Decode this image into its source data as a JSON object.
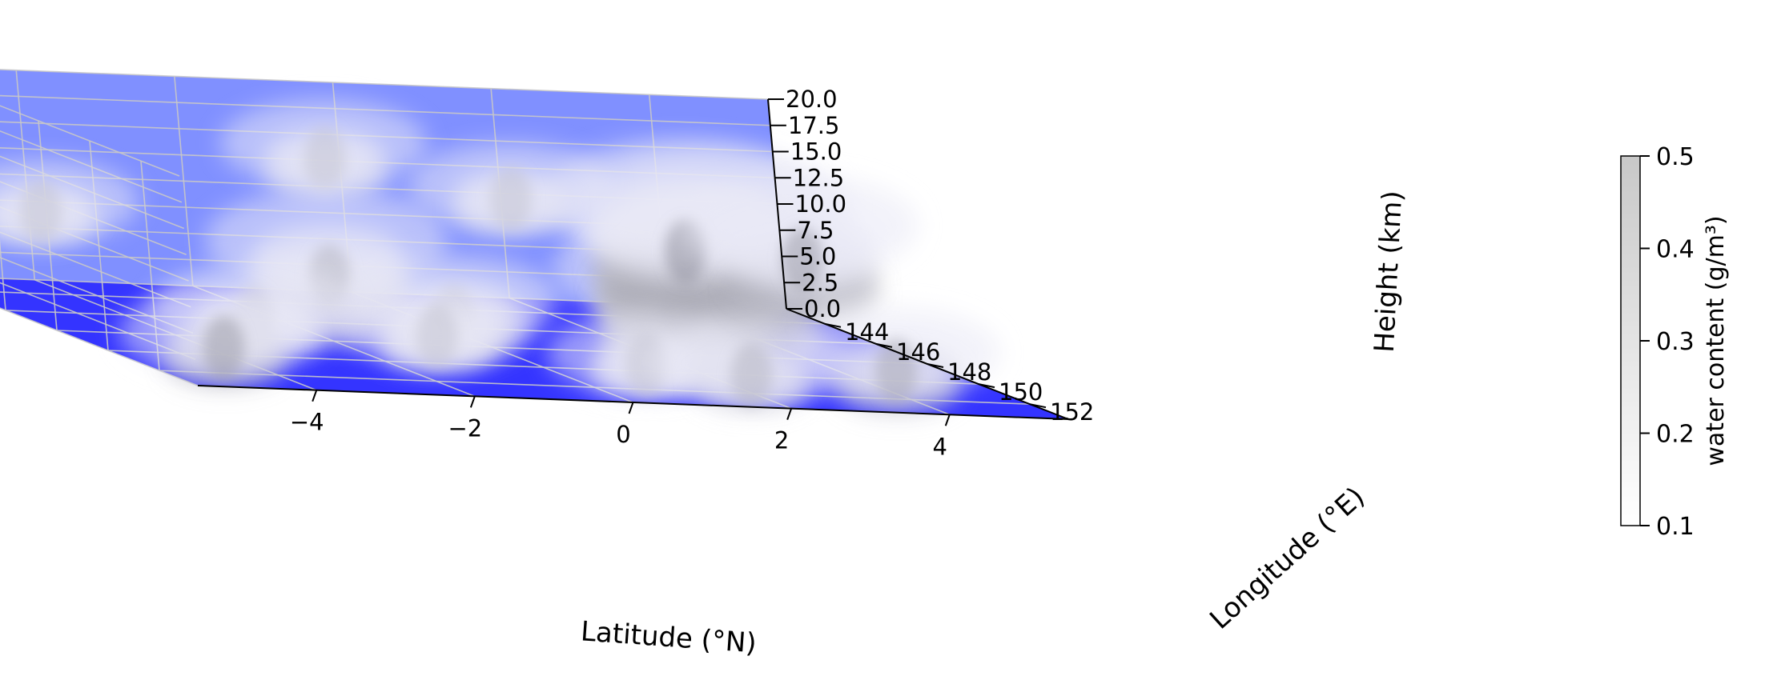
{
  "chart_data": {
    "type": "scatter3d",
    "title": "",
    "xlabel": "Latitude ($^\\circ$N)",
    "ylabel": "Longitude ($^\\circ$E)",
    "zlabel": "Height (km)",
    "xlabel_text": "Latitude (°N)",
    "ylabel_text": "Longitude (°E)",
    "zlabel_text": "Height (km)",
    "xlim": [
      -5.5,
      5.5
    ],
    "ylim": [
      142.5,
      153.5
    ],
    "zlim": [
      0,
      20
    ],
    "x_ticks": [
      -4,
      -2,
      0,
      2,
      4
    ],
    "x_tick_labels": [
      "−4",
      "−2",
      "0",
      "2",
      "4"
    ],
    "y_ticks": [
      144,
      146,
      148,
      150,
      152
    ],
    "y_tick_labels": [
      "144",
      "146",
      "148",
      "150",
      "152"
    ],
    "z_ticks": [
      0,
      2.5,
      5,
      7.5,
      10,
      12.5,
      15,
      17.5,
      20
    ],
    "z_tick_labels": [
      "0.0",
      "2.5",
      "5.0",
      "7.5",
      "10.0",
      "12.5",
      "15.0",
      "17.5",
      "20.0"
    ],
    "grid": true,
    "pane_colors": {
      "floor": "#3434ff",
      "walls": "#8090ff"
    },
    "point_color": "#d8d8e8",
    "colorbar": {
      "label": "water content (g/m³)",
      "range": [
        0.1,
        0.5
      ],
      "ticks": [
        0.1,
        0.2,
        0.3,
        0.4,
        0.5
      ],
      "tick_labels": [
        "0.1",
        "0.2",
        "0.3",
        "0.4",
        "0.5"
      ],
      "colormap": "greys",
      "placement": "right"
    },
    "cloud_clusters": [
      {
        "lat": 3.2,
        "lon": 147.0,
        "z_bottom": 1.0,
        "z_top": 13.0,
        "water": 0.3
      },
      {
        "lat": 2.2,
        "lon": 148.8,
        "z_bottom": 1.0,
        "z_top": 9.0,
        "water": 0.25
      },
      {
        "lat": 3.5,
        "lon": 145.0,
        "z_bottom": 2.0,
        "z_top": 12.5,
        "water": 0.35
      },
      {
        "lat": 4.5,
        "lon": 146.5,
        "z_bottom": 5.0,
        "z_top": 11.5,
        "water": 0.3
      },
      {
        "lat": 1.5,
        "lon": 144.5,
        "z_bottom": 10.0,
        "z_top": 12.5,
        "water": 0.15
      },
      {
        "lat": -0.5,
        "lon": 143.5,
        "z_bottom": 12.0,
        "z_top": 15.0,
        "water": 0.15
      },
      {
        "lat": -4.0,
        "lon": 143.0,
        "z_bottom": 6.0,
        "z_top": 8.0,
        "water": 0.15
      },
      {
        "lat": -1.2,
        "lon": 145.5,
        "z_bottom": 0.5,
        "z_top": 7.5,
        "water": 0.2
      },
      {
        "lat": -0.3,
        "lon": 147.5,
        "z_bottom": 0.5,
        "z_top": 4.0,
        "water": 0.2
      },
      {
        "lat": -1.0,
        "lon": 149.0,
        "z_bottom": 0.5,
        "z_top": 3.0,
        "water": 0.15
      },
      {
        "lat": -3.0,
        "lon": 148.0,
        "z_bottom": 0.5,
        "z_top": 3.0,
        "water": 0.15
      },
      {
        "lat": -4.5,
        "lon": 151.5,
        "z_bottom": 0.5,
        "z_top": 3.5,
        "water": 0.3
      },
      {
        "lat": 1.0,
        "lon": 151.0,
        "z_bottom": 0.5,
        "z_top": 2.5,
        "water": 0.15
      },
      {
        "lat": 2.0,
        "lon": 152.0,
        "z_bottom": 0.5,
        "z_top": 3.0,
        "water": 0.2
      },
      {
        "lat": 4.0,
        "lon": 151.5,
        "z_bottom": 0.5,
        "z_top": 4.0,
        "water": 0.25
      }
    ]
  }
}
